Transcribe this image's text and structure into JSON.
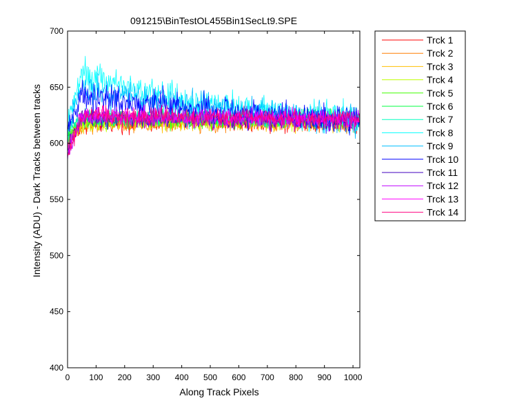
{
  "chart_data": {
    "type": "line",
    "title": "091215\\BinTestOL455Bin1SecLt9.SPE",
    "xlabel": "Along Track Pixels",
    "ylabel": "Intensity (ADU) - Dark Tracks between tracks",
    "xlim": [
      0,
      1024
    ],
    "ylim": [
      400,
      700
    ],
    "xticks": [
      0,
      100,
      200,
      300,
      400,
      500,
      600,
      700,
      800,
      900,
      1000
    ],
    "yticks": [
      400,
      450,
      500,
      550,
      600,
      650,
      700
    ],
    "grid": false,
    "legend_position": "outside-top-right",
    "noise_note_ADU_peak": 8,
    "series": [
      {
        "name": "Trck 1",
        "color": "#ff0000",
        "x": [
          0,
          50,
          200,
          400,
          600,
          800,
          1000,
          1023
        ],
        "y": [
          598,
          617,
          618,
          619,
          619,
          619,
          619,
          619
        ]
      },
      {
        "name": "Trck 2",
        "color": "#ff7f00",
        "x": [
          0,
          50,
          200,
          400,
          600,
          800,
          1000,
          1023
        ],
        "y": [
          600,
          617,
          618,
          618,
          618,
          618,
          618,
          618
        ]
      },
      {
        "name": "Trck 3",
        "color": "#ffbf00",
        "x": [
          0,
          50,
          200,
          400,
          600,
          800,
          1000,
          1023
        ],
        "y": [
          602,
          618,
          619,
          619,
          619,
          619,
          619,
          619
        ]
      },
      {
        "name": "Trck 4",
        "color": "#bfff00",
        "x": [
          0,
          50,
          200,
          400,
          600,
          800,
          1000,
          1023
        ],
        "y": [
          603,
          619,
          620,
          620,
          620,
          620,
          620,
          620
        ]
      },
      {
        "name": "Trck 5",
        "color": "#40ff00",
        "x": [
          0,
          50,
          200,
          400,
          600,
          800,
          1000,
          1023
        ],
        "y": [
          605,
          621,
          621,
          621,
          621,
          621,
          621,
          621
        ]
      },
      {
        "name": "Trck 6",
        "color": "#00ff40",
        "x": [
          0,
          50,
          200,
          400,
          600,
          800,
          1000,
          1023
        ],
        "y": [
          607,
          622,
          622,
          622,
          622,
          622,
          622,
          622
        ]
      },
      {
        "name": "Trck 7",
        "color": "#00ffbf",
        "x": [
          0,
          50,
          200,
          400,
          600,
          800,
          1000,
          1023
        ],
        "y": [
          608,
          623,
          623,
          623,
          623,
          623,
          623,
          622
        ]
      },
      {
        "name": "Trck 8",
        "color": "#00ffff",
        "x": [
          0,
          50,
          200,
          400,
          600,
          800,
          1000,
          1023
        ],
        "y": [
          620,
          662,
          651,
          638,
          631,
          626,
          622,
          621
        ]
      },
      {
        "name": "Trck 9",
        "color": "#00bfff",
        "x": [
          0,
          50,
          200,
          400,
          600,
          800,
          1000,
          1023
        ],
        "y": [
          615,
          650,
          643,
          634,
          629,
          624,
          621,
          620
        ]
      },
      {
        "name": "Trck 10",
        "color": "#0000ff",
        "x": [
          0,
          50,
          200,
          400,
          600,
          800,
          1000,
          1023
        ],
        "y": [
          612,
          640,
          637,
          632,
          628,
          624,
          621,
          620
        ]
      },
      {
        "name": "Trck 11",
        "color": "#4000bf",
        "x": [
          0,
          50,
          200,
          400,
          600,
          800,
          1000,
          1023
        ],
        "y": [
          595,
          622,
          622,
          622,
          622,
          621,
          620,
          620
        ]
      },
      {
        "name": "Trck 12",
        "color": "#bf00ff",
        "x": [
          0,
          50,
          200,
          400,
          600,
          800,
          1000,
          1023
        ],
        "y": [
          590,
          623,
          623,
          623,
          622,
          621,
          620,
          620
        ]
      },
      {
        "name": "Trck 13",
        "color": "#ff00ff",
        "x": [
          0,
          50,
          200,
          400,
          600,
          800,
          1000,
          1023
        ],
        "y": [
          592,
          624,
          624,
          623,
          623,
          622,
          621,
          621
        ]
      },
      {
        "name": "Trck 14",
        "color": "#ff007f",
        "x": [
          0,
          50,
          200,
          400,
          600,
          800,
          1000,
          1023
        ],
        "y": [
          588,
          624,
          624,
          624,
          623,
          622,
          621,
          621
        ]
      }
    ]
  }
}
